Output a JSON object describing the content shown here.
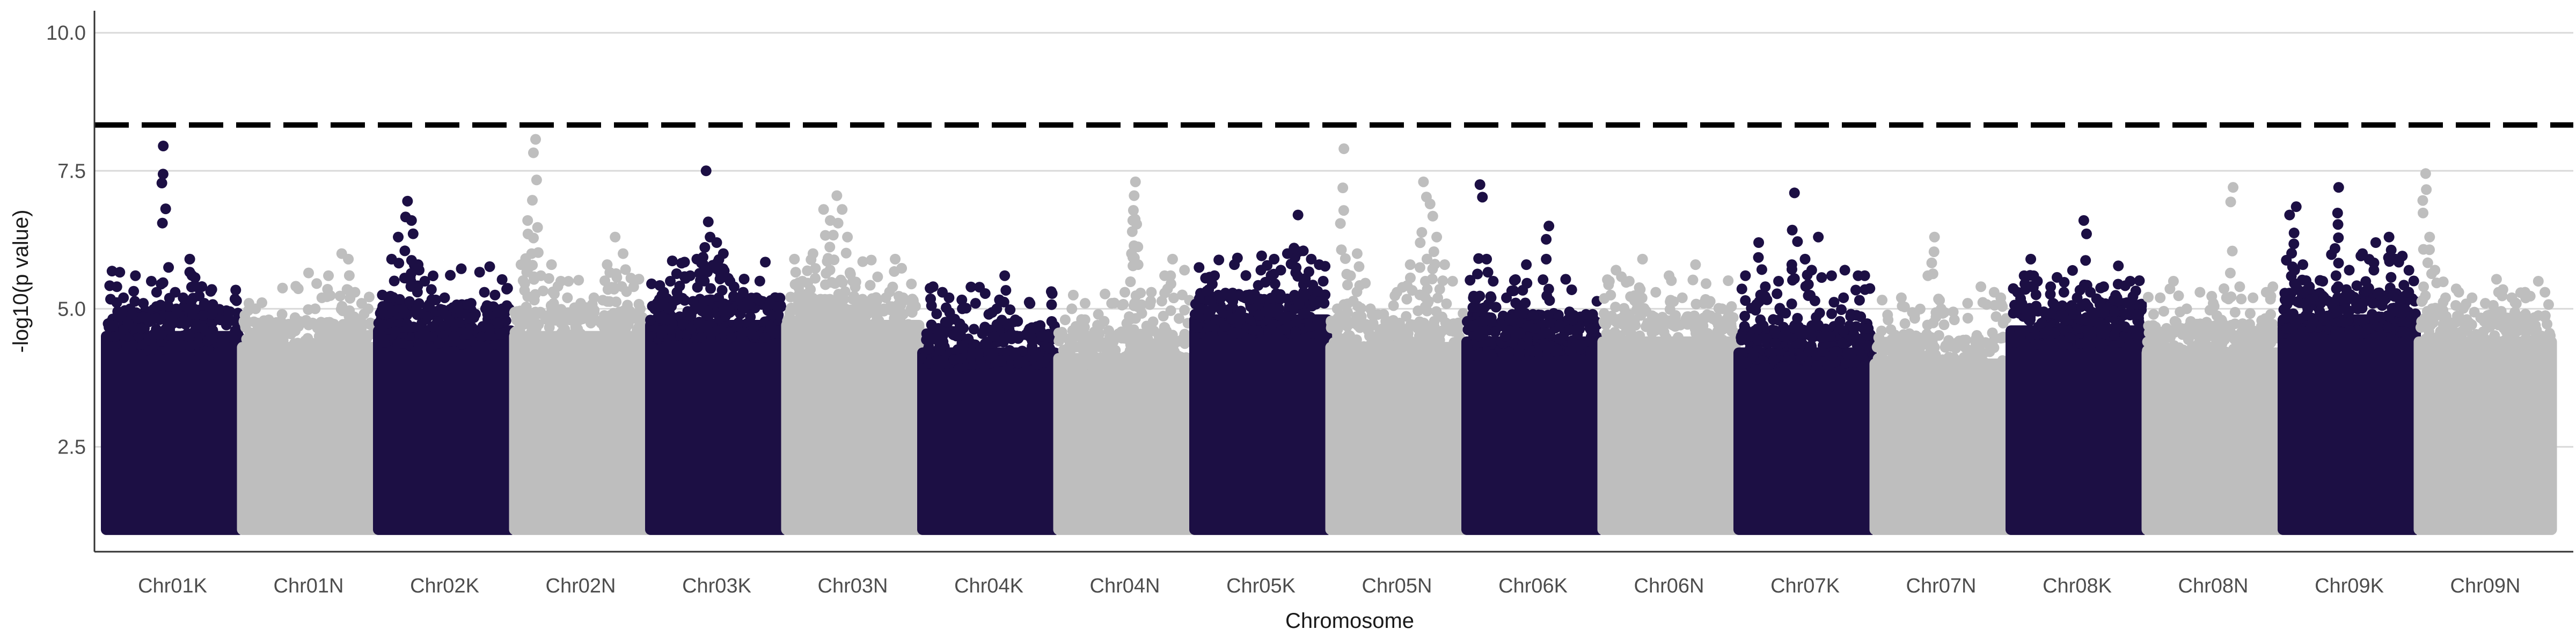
{
  "chart_data": {
    "type": "scatter",
    "subtype": "manhattan",
    "xlabel": "Chromosome",
    "ylabel": "-log10(p value)",
    "ylim": [
      0.6,
      10.4
    ],
    "yticks": [
      2.5,
      5.0,
      7.5,
      10.0
    ],
    "ytick_labels": [
      "2.5",
      "5.0",
      "7.5",
      "10.0"
    ],
    "grid": "horizontal major",
    "legend": "none",
    "threshold": {
      "value": 8.33,
      "style": "dashed",
      "color": "#000000"
    },
    "colors": {
      "odd": "#1c0f44",
      "even": "#bebebe"
    },
    "chromosomes": [
      {
        "name": "Chr01K",
        "color": "#1c0f44",
        "mass_top": 4.6,
        "peaks": [
          [
            0.08,
            5.4
          ],
          [
            0.13,
            5.2
          ],
          [
            0.18,
            5.0
          ],
          [
            0.22,
            5.6
          ],
          [
            0.28,
            5.1
          ],
          [
            0.34,
            5.5
          ],
          [
            0.38,
            5.3
          ],
          [
            0.43,
            7.95
          ],
          [
            0.47,
            5.75
          ],
          [
            0.52,
            5.3
          ],
          [
            0.58,
            5.2
          ],
          [
            0.63,
            5.9
          ],
          [
            0.68,
            5.4
          ],
          [
            0.74,
            5.1
          ],
          [
            0.8,
            4.9
          ],
          [
            0.86,
            4.8
          ],
          [
            0.92,
            4.8
          ]
        ]
      },
      {
        "name": "Chr01N",
        "color": "#bebebe",
        "mass_top": 4.4,
        "peaks": [
          [
            0.05,
            5.1
          ],
          [
            0.1,
            5.0
          ],
          [
            0.2,
            4.8
          ],
          [
            0.3,
            4.9
          ],
          [
            0.4,
            4.8
          ],
          [
            0.5,
            5.65
          ],
          [
            0.55,
            5.0
          ],
          [
            0.6,
            5.2
          ],
          [
            0.65,
            5.6
          ],
          [
            0.75,
            6.0
          ],
          [
            0.8,
            5.9
          ],
          [
            0.85,
            5.3
          ],
          [
            0.9,
            5.1
          ],
          [
            0.95,
            5.0
          ]
        ]
      },
      {
        "name": "Chr02K",
        "color": "#1c0f44",
        "mass_top": 4.7,
        "peaks": [
          [
            0.03,
            5.25
          ],
          [
            0.1,
            5.9
          ],
          [
            0.15,
            6.3
          ],
          [
            0.2,
            6.05
          ],
          [
            0.22,
            6.95
          ],
          [
            0.25,
            6.6
          ],
          [
            0.3,
            5.8
          ],
          [
            0.35,
            5.5
          ],
          [
            0.4,
            5.35
          ],
          [
            0.5,
            5.2
          ],
          [
            0.6,
            5.0
          ],
          [
            0.7,
            5.1
          ],
          [
            0.8,
            5.3
          ],
          [
            0.88,
            5.25
          ],
          [
            0.95,
            5.0
          ]
        ]
      },
      {
        "name": "Chr02N",
        "color": "#bebebe",
        "mass_top": 4.6,
        "peaks": [
          [
            0.05,
            5.8
          ],
          [
            0.1,
            6.6
          ],
          [
            0.13,
            6.0
          ],
          [
            0.16,
            8.07
          ],
          [
            0.2,
            5.6
          ],
          [
            0.28,
            5.8
          ],
          [
            0.35,
            5.5
          ],
          [
            0.4,
            5.2
          ],
          [
            0.5,
            5.1
          ],
          [
            0.6,
            5.2
          ],
          [
            0.7,
            5.8
          ],
          [
            0.76,
            6.3
          ],
          [
            0.82,
            6.0
          ],
          [
            0.9,
            5.4
          ],
          [
            0.95,
            5.0
          ]
        ]
      },
      {
        "name": "Chr03K",
        "color": "#1c0f44",
        "mass_top": 4.8,
        "peaks": [
          [
            0.05,
            5.1
          ],
          [
            0.1,
            5.3
          ],
          [
            0.15,
            5.5
          ],
          [
            0.2,
            5.3
          ],
          [
            0.3,
            5.6
          ],
          [
            0.35,
            5.9
          ],
          [
            0.4,
            5.8
          ],
          [
            0.42,
            7.5
          ],
          [
            0.45,
            6.3
          ],
          [
            0.5,
            6.2
          ],
          [
            0.55,
            6.0
          ],
          [
            0.6,
            5.5
          ],
          [
            0.7,
            5.3
          ],
          [
            0.8,
            5.2
          ],
          [
            0.9,
            5.1
          ]
        ]
      },
      {
        "name": "Chr03N",
        "color": "#bebebe",
        "mass_top": 4.8,
        "peaks": [
          [
            0.06,
            5.9
          ],
          [
            0.12,
            5.5
          ],
          [
            0.2,
            6.0
          ],
          [
            0.28,
            6.8
          ],
          [
            0.33,
            6.6
          ],
          [
            0.38,
            7.05
          ],
          [
            0.42,
            6.8
          ],
          [
            0.46,
            6.3
          ],
          [
            0.5,
            5.5
          ],
          [
            0.56,
            4.8
          ],
          [
            0.65,
            4.6
          ],
          [
            0.75,
            5.2
          ],
          [
            0.82,
            5.9
          ],
          [
            0.88,
            5.2
          ],
          [
            0.94,
            5.0
          ]
        ]
      },
      {
        "name": "Chr04K",
        "color": "#1c0f44",
        "mass_top": 4.3,
        "peaks": [
          [
            0.08,
            5.4
          ],
          [
            0.15,
            5.3
          ],
          [
            0.2,
            5.2
          ],
          [
            0.3,
            5.0
          ],
          [
            0.4,
            5.1
          ],
          [
            0.5,
            4.9
          ],
          [
            0.56,
            5.0
          ],
          [
            0.62,
            5.6
          ],
          [
            0.7,
            4.8
          ],
          [
            0.8,
            4.6
          ],
          [
            0.9,
            4.5
          ]
        ]
      },
      {
        "name": "Chr04N",
        "color": "#bebebe",
        "mass_top": 4.2,
        "peaks": [
          [
            0.05,
            4.8
          ],
          [
            0.1,
            5.0
          ],
          [
            0.2,
            5.1
          ],
          [
            0.3,
            4.9
          ],
          [
            0.4,
            5.1
          ],
          [
            0.5,
            5.3
          ],
          [
            0.55,
            6.0
          ],
          [
            0.56,
            6.6
          ],
          [
            0.57,
            7.05
          ],
          [
            0.58,
            7.3
          ],
          [
            0.6,
            5.8
          ],
          [
            0.7,
            5.3
          ],
          [
            0.8,
            5.6
          ],
          [
            0.86,
            5.9
          ],
          [
            0.95,
            5.7
          ]
        ]
      },
      {
        "name": "Chr05K",
        "color": "#1c0f44",
        "mass_top": 4.9,
        "peaks": [
          [
            0.05,
            5.0
          ],
          [
            0.15,
            5.6
          ],
          [
            0.2,
            5.2
          ],
          [
            0.3,
            5.8
          ],
          [
            0.4,
            5.2
          ],
          [
            0.5,
            5.7
          ],
          [
            0.6,
            5.9
          ],
          [
            0.65,
            5.7
          ],
          [
            0.7,
            6.0
          ],
          [
            0.75,
            6.1
          ],
          [
            0.78,
            6.7
          ],
          [
            0.82,
            6.05
          ],
          [
            0.88,
            5.9
          ],
          [
            0.94,
            5.8
          ],
          [
            0.97,
            5.5
          ]
        ]
      },
      {
        "name": "Chr05N",
        "color": "#bebebe",
        "mass_top": 4.4,
        "peaks": [
          [
            0.05,
            5.0
          ],
          [
            0.1,
            7.9
          ],
          [
            0.15,
            5.6
          ],
          [
            0.2,
            6.0
          ],
          [
            0.3,
            5.0
          ],
          [
            0.4,
            4.9
          ],
          [
            0.5,
            5.3
          ],
          [
            0.6,
            5.8
          ],
          [
            0.7,
            7.3
          ],
          [
            0.75,
            6.9
          ],
          [
            0.8,
            6.3
          ],
          [
            0.86,
            5.8
          ],
          [
            0.92,
            5.5
          ]
        ]
      },
      {
        "name": "Chr06K",
        "color": "#1c0f44",
        "mass_top": 4.5,
        "peaks": [
          [
            0.05,
            5.2
          ],
          [
            0.1,
            7.25
          ],
          [
            0.15,
            5.9
          ],
          [
            0.2,
            5.5
          ],
          [
            0.3,
            5.2
          ],
          [
            0.4,
            5.0
          ],
          [
            0.45,
            5.8
          ],
          [
            0.5,
            4.9
          ],
          [
            0.6,
            5.9
          ],
          [
            0.62,
            6.5
          ],
          [
            0.7,
            4.7
          ],
          [
            0.8,
            4.8
          ],
          [
            0.9,
            4.9
          ],
          [
            0.95,
            4.9
          ]
        ]
      },
      {
        "name": "Chr06N",
        "color": "#bebebe",
        "mass_top": 4.5,
        "peaks": [
          [
            0.05,
            5.5
          ],
          [
            0.1,
            5.7
          ],
          [
            0.2,
            5.5
          ],
          [
            0.3,
            5.9
          ],
          [
            0.4,
            5.3
          ],
          [
            0.5,
            5.6
          ],
          [
            0.6,
            5.2
          ],
          [
            0.7,
            5.8
          ],
          [
            0.8,
            5.1
          ],
          [
            0.9,
            5.0
          ],
          [
            0.95,
            4.9
          ]
        ]
      },
      {
        "name": "Chr07K",
        "color": "#1c0f44",
        "mass_top": 4.3,
        "peaks": [
          [
            0.05,
            5.6
          ],
          [
            0.15,
            6.2
          ],
          [
            0.2,
            5.4
          ],
          [
            0.3,
            5.5
          ],
          [
            0.4,
            5.8
          ],
          [
            0.42,
            7.1
          ],
          [
            0.5,
            5.9
          ],
          [
            0.55,
            5.7
          ],
          [
            0.6,
            6.3
          ],
          [
            0.7,
            5.6
          ],
          [
            0.8,
            5.7
          ],
          [
            0.9,
            5.6
          ],
          [
            0.95,
            5.6
          ]
        ]
      },
      {
        "name": "Chr07N",
        "color": "#bebebe",
        "mass_top": 4.1,
        "peaks": [
          [
            0.05,
            4.6
          ],
          [
            0.1,
            4.8
          ],
          [
            0.2,
            5.2
          ],
          [
            0.3,
            4.9
          ],
          [
            0.4,
            5.6
          ],
          [
            0.45,
            6.3
          ],
          [
            0.5,
            5.0
          ],
          [
            0.6,
            4.8
          ],
          [
            0.7,
            5.1
          ],
          [
            0.8,
            5.4
          ],
          [
            0.9,
            5.3
          ],
          [
            0.95,
            5.2
          ]
        ]
      },
      {
        "name": "Chr08K",
        "color": "#1c0f44",
        "mass_top": 4.7,
        "peaks": [
          [
            0.05,
            5.3
          ],
          [
            0.1,
            5.6
          ],
          [
            0.15,
            5.9
          ],
          [
            0.2,
            5.5
          ],
          [
            0.3,
            5.4
          ],
          [
            0.4,
            5.3
          ],
          [
            0.5,
            5.2
          ],
          [
            0.55,
            6.6
          ],
          [
            0.6,
            5.3
          ],
          [
            0.7,
            5.4
          ],
          [
            0.8,
            5.2
          ],
          [
            0.9,
            5.5
          ],
          [
            0.95,
            4.9
          ]
        ]
      },
      {
        "name": "Chr08N",
        "color": "#bebebe",
        "mass_top": 4.3,
        "peaks": [
          [
            0.05,
            4.9
          ],
          [
            0.1,
            5.2
          ],
          [
            0.2,
            5.5
          ],
          [
            0.3,
            5.0
          ],
          [
            0.4,
            5.3
          ],
          [
            0.5,
            5.1
          ],
          [
            0.6,
            5.2
          ],
          [
            0.65,
            7.2
          ],
          [
            0.7,
            5.4
          ],
          [
            0.8,
            5.2
          ],
          [
            0.9,
            5.3
          ],
          [
            0.95,
            5.4
          ]
        ]
      },
      {
        "name": "Chr09K",
        "color": "#1c0f44",
        "mass_top": 4.9,
        "peaks": [
          [
            0.05,
            6.7
          ],
          [
            0.1,
            6.85
          ],
          [
            0.15,
            5.8
          ],
          [
            0.2,
            5.4
          ],
          [
            0.3,
            5.5
          ],
          [
            0.4,
            5.6
          ],
          [
            0.42,
            7.2
          ],
          [
            0.5,
            5.7
          ],
          [
            0.6,
            6.0
          ],
          [
            0.7,
            6.2
          ],
          [
            0.8,
            6.3
          ],
          [
            0.85,
            5.9
          ],
          [
            0.92,
            5.0
          ]
        ]
      },
      {
        "name": "Chr09N",
        "color": "#bebebe",
        "mass_top": 4.5,
        "peaks": [
          [
            0.05,
            7.45
          ],
          [
            0.08,
            6.3
          ],
          [
            0.12,
            5.7
          ],
          [
            0.2,
            5.2
          ],
          [
            0.3,
            5.3
          ],
          [
            0.4,
            5.2
          ],
          [
            0.5,
            5.1
          ],
          [
            0.6,
            5.3
          ],
          [
            0.7,
            5.2
          ],
          [
            0.8,
            5.3
          ],
          [
            0.9,
            5.5
          ],
          [
            0.95,
            5.3
          ]
        ]
      }
    ]
  }
}
